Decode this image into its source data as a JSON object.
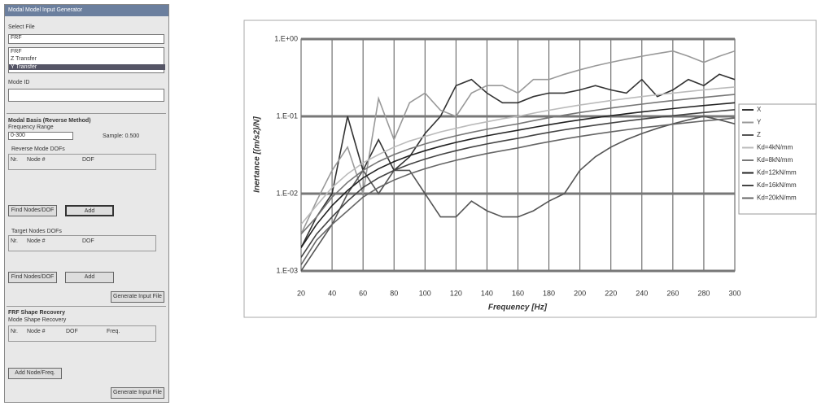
{
  "panel": {
    "title": "Modal Model Input Generator",
    "select_file_label": "Select File",
    "select_value": "FRF",
    "list_items": [
      "FRF",
      "Z Transfer",
      "Y Transfer"
    ],
    "mode_id_label": "Mode ID",
    "modal_basis_title": "Modal Basis (Reverse Method)",
    "frequency_range_label": "Frequency Range",
    "frequency_range_value": "0-300",
    "sample_label": "Sample: 0.500",
    "reverse_group_title": "Reverse Mode DOFs",
    "reverse_columns": [
      "Nr.",
      "Node #",
      "DOF"
    ],
    "find_button_1": "Find Nodes/DOF",
    "add_button_1": "Add",
    "target_group_title": "Target Nodes DOFs",
    "target_columns": [
      "Nr.",
      "Node #",
      "DOF"
    ],
    "find_button_2": "Find Nodes/DOF",
    "add_button_2": "Add",
    "generate_button_1": "Generate Input File",
    "frf_title": "FRF Shape Recovery",
    "mode_shape_label": "Mode Shape Recovery",
    "frf_columns": [
      "Nr.",
      "Node #",
      "DOF",
      "Freq."
    ],
    "add_node_button": "Add Node/Freq.",
    "generate_button_2": "Generate Input File"
  },
  "chart_data": {
    "type": "line",
    "xlabel": "Frequency [Hz]",
    "ylabel": "Inertance [(m/s2)/N]",
    "log_y": true,
    "grid": true,
    "legend": "right",
    "xlim": [
      20,
      300
    ],
    "xticks": [
      20,
      40,
      60,
      80,
      100,
      120,
      140,
      160,
      180,
      200,
      220,
      240,
      260,
      280,
      300
    ],
    "ylim": [
      0.001,
      1
    ],
    "yticks": [
      {
        "value": 0.001,
        "label": "1.E-03"
      },
      {
        "value": 0.01,
        "label": "1.E-02"
      },
      {
        "value": 0.1,
        "label": "1.E-01"
      },
      {
        "value": 1,
        "label": "1.E+00"
      }
    ],
    "x": [
      20,
      30,
      40,
      50,
      60,
      70,
      80,
      90,
      100,
      110,
      120,
      130,
      140,
      150,
      160,
      170,
      180,
      190,
      200,
      210,
      220,
      230,
      240,
      250,
      260,
      270,
      280,
      290,
      300
    ],
    "series": [
      {
        "name": "X",
        "color": "#333333",
        "values": [
          0.002,
          0.005,
          0.01,
          0.1,
          0.02,
          0.05,
          0.02,
          0.03,
          0.06,
          0.1,
          0.25,
          0.3,
          0.2,
          0.15,
          0.15,
          0.18,
          0.2,
          0.2,
          0.22,
          0.25,
          0.22,
          0.2,
          0.3,
          0.18,
          0.22,
          0.3,
          0.25,
          0.35,
          0.3
        ]
      },
      {
        "name": "Y",
        "color": "#999999",
        "values": [
          0.003,
          0.008,
          0.02,
          0.04,
          0.01,
          0.17,
          0.05,
          0.15,
          0.2,
          0.12,
          0.1,
          0.2,
          0.25,
          0.25,
          0.2,
          0.3,
          0.3,
          0.35,
          0.4,
          0.45,
          0.5,
          0.55,
          0.6,
          0.65,
          0.7,
          0.6,
          0.5,
          0.6,
          0.7
        ]
      },
      {
        "name": "Z",
        "color": "#555555",
        "values": [
          0.001,
          0.002,
          0.004,
          0.01,
          0.02,
          0.01,
          0.02,
          0.02,
          0.01,
          0.005,
          0.005,
          0.008,
          0.006,
          0.005,
          0.005,
          0.006,
          0.008,
          0.01,
          0.02,
          0.03,
          0.04,
          0.05,
          0.06,
          0.07,
          0.08,
          0.09,
          0.1,
          0.09,
          0.08
        ]
      },
      {
        "name": "Kd=4kN/mm",
        "color": "#bbbbbb",
        "values": [
          0.004,
          0.007,
          0.012,
          0.018,
          0.025,
          0.032,
          0.04,
          0.048,
          0.055,
          0.063,
          0.07,
          0.078,
          0.085,
          0.093,
          0.1,
          0.11,
          0.12,
          0.13,
          0.14,
          0.15,
          0.16,
          0.17,
          0.18,
          0.19,
          0.2,
          0.21,
          0.22,
          0.23,
          0.24
        ]
      },
      {
        "name": "Kd=8kN/mm",
        "color": "#777777",
        "values": [
          0.003,
          0.005,
          0.009,
          0.014,
          0.02,
          0.026,
          0.032,
          0.038,
          0.044,
          0.05,
          0.056,
          0.062,
          0.068,
          0.074,
          0.08,
          0.088,
          0.096,
          0.104,
          0.112,
          0.12,
          0.128,
          0.136,
          0.144,
          0.152,
          0.16,
          0.168,
          0.176,
          0.184,
          0.192
        ]
      },
      {
        "name": "Kd=12kN/mm",
        "color": "#222222",
        "values": [
          0.002,
          0.004,
          0.007,
          0.011,
          0.016,
          0.021,
          0.026,
          0.031,
          0.036,
          0.041,
          0.046,
          0.051,
          0.056,
          0.061,
          0.066,
          0.072,
          0.078,
          0.084,
          0.09,
          0.096,
          0.102,
          0.108,
          0.114,
          0.12,
          0.126,
          0.132,
          0.138,
          0.144,
          0.15
        ]
      },
      {
        "name": "Kd=16kN/mm",
        "color": "#444444",
        "values": [
          0.0015,
          0.003,
          0.005,
          0.008,
          0.012,
          0.016,
          0.02,
          0.024,
          0.028,
          0.032,
          0.036,
          0.04,
          0.044,
          0.048,
          0.052,
          0.057,
          0.062,
          0.067,
          0.072,
          0.077,
          0.082,
          0.087,
          0.092,
          0.097,
          0.102,
          0.107,
          0.112,
          0.117,
          0.122
        ]
      },
      {
        "name": "Kd=20kN/mm",
        "color": "#666666",
        "values": [
          0.0012,
          0.0025,
          0.004,
          0.006,
          0.009,
          0.012,
          0.015,
          0.018,
          0.021,
          0.024,
          0.027,
          0.03,
          0.033,
          0.036,
          0.039,
          0.043,
          0.047,
          0.051,
          0.055,
          0.059,
          0.063,
          0.067,
          0.071,
          0.075,
          0.079,
          0.083,
          0.087,
          0.091,
          0.095
        ]
      }
    ]
  }
}
